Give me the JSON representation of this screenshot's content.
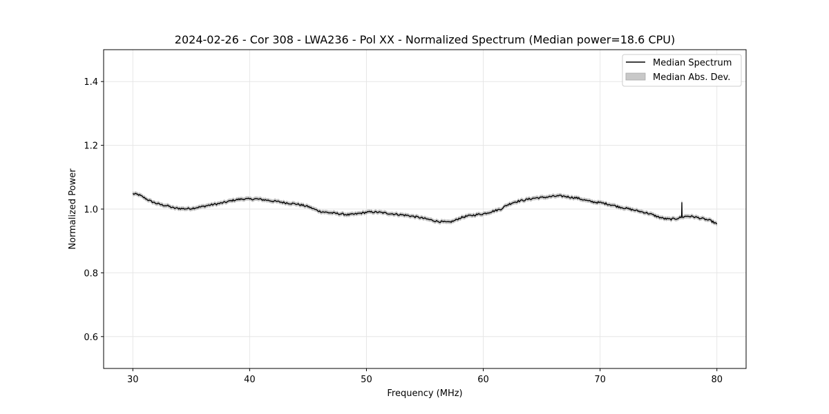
{
  "chart_data": {
    "type": "line",
    "title": "2024-02-26 - Cor 308 - LWA236 - Pol XX - Normalized Spectrum (Median power=18.6 CPU)",
    "xlabel": "Frequency (MHz)",
    "ylabel": "Normalized Power",
    "xlim": [
      27.5,
      82.5
    ],
    "ylim": [
      0.5,
      1.5
    ],
    "xticks": [
      30,
      40,
      50,
      60,
      70,
      80
    ],
    "xtick_labels": [
      "30",
      "40",
      "50",
      "60",
      "70",
      "80"
    ],
    "yticks": [
      0.6,
      0.8,
      1.0,
      1.2,
      1.4
    ],
    "ytick_labels": [
      "0.6",
      "0.8",
      "1.0",
      "1.2",
      "1.4"
    ],
    "grid": true,
    "legend_position": "top-right",
    "legend": [
      {
        "label": "Median Spectrum",
        "kind": "line",
        "color": "#000000"
      },
      {
        "label": "Median Abs. Dev.",
        "kind": "band",
        "color": "#c8c8c8"
      }
    ],
    "series": [
      {
        "name": "Median Spectrum",
        "color": "#000000",
        "x": [
          30,
          30.5,
          31,
          31.5,
          32,
          32.5,
          33,
          33.5,
          34,
          34.5,
          35,
          35.5,
          36,
          36.5,
          37,
          37.5,
          38,
          38.5,
          39,
          39.5,
          40,
          40.5,
          41,
          41.5,
          42,
          42.5,
          43,
          43.5,
          44,
          44.5,
          45,
          45.5,
          46,
          46.5,
          47,
          47.5,
          48,
          48.5,
          49,
          49.5,
          50,
          50.5,
          51,
          51.5,
          52,
          52.5,
          53,
          53.5,
          54,
          54.5,
          55,
          55.5,
          56,
          56.5,
          57,
          57.5,
          58,
          58.5,
          59,
          59.5,
          60,
          60.5,
          61,
          61.5,
          62,
          62.5,
          63,
          63.5,
          64,
          64.5,
          65,
          65.5,
          66,
          66.5,
          67,
          67.5,
          68,
          68.5,
          69,
          69.5,
          70,
          70.5,
          71,
          71.5,
          72,
          72.5,
          73,
          73.5,
          74,
          74.5,
          75,
          75.5,
          76,
          76.5,
          77,
          77.5,
          78,
          78.5,
          79,
          79.5,
          80
        ],
        "y": [
          1.048,
          1.045,
          1.035,
          1.025,
          1.018,
          1.013,
          1.01,
          1.003,
          1.002,
          1.001,
          1.002,
          1.005,
          1.008,
          1.012,
          1.015,
          1.018,
          1.022,
          1.027,
          1.03,
          1.032,
          1.031,
          1.032,
          1.03,
          1.028,
          1.025,
          1.023,
          1.02,
          1.018,
          1.016,
          1.012,
          1.008,
          1.0,
          0.993,
          0.99,
          0.988,
          0.986,
          0.984,
          0.982,
          0.984,
          0.987,
          0.99,
          0.991,
          0.99,
          0.988,
          0.986,
          0.984,
          0.982,
          0.98,
          0.977,
          0.974,
          0.97,
          0.966,
          0.962,
          0.96,
          0.958,
          0.963,
          0.972,
          0.977,
          0.98,
          0.983,
          0.985,
          0.99,
          0.995,
          1.0,
          1.012,
          1.02,
          1.025,
          1.028,
          1.032,
          1.035,
          1.036,
          1.038,
          1.04,
          1.041,
          1.04,
          1.037,
          1.035,
          1.03,
          1.025,
          1.022,
          1.02,
          1.017,
          1.013,
          1.008,
          1.004,
          1.0,
          0.996,
          0.992,
          0.988,
          0.982,
          0.975,
          0.97,
          0.968,
          0.97,
          0.975,
          0.978,
          0.976,
          0.972,
          0.968,
          0.963,
          0.953
        ]
      }
    ],
    "annotations": [
      {
        "type": "spike",
        "x": 77,
        "y": 1.02
      }
    ],
    "band": {
      "name": "Median Abs. Dev.",
      "color": "#c8c8c8",
      "half_width": 0.006
    }
  }
}
